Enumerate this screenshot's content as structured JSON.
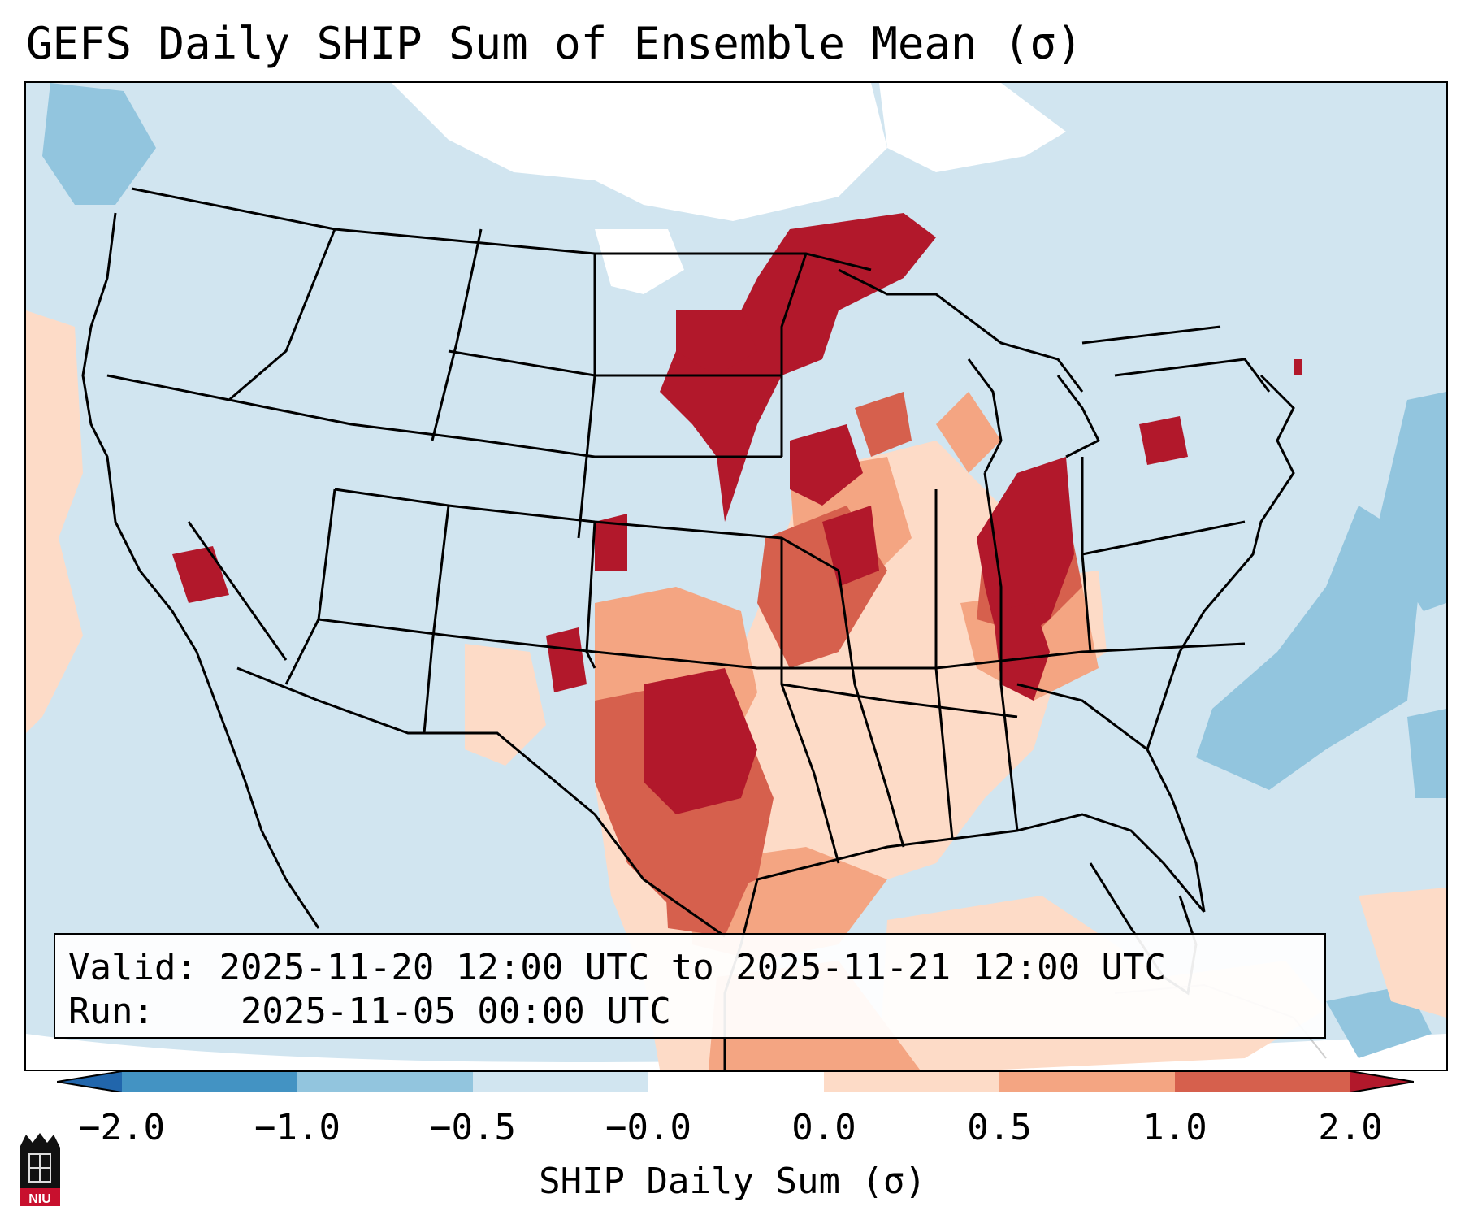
{
  "title": "GEFS Daily SHIP Sum of Ensemble Mean (σ)",
  "info": {
    "valid_label": "Valid:",
    "valid_value": "2025-11-20 12:00 UTC to 2025-11-21 12:00 UTC",
    "run_label": "Run:",
    "run_value": "2025-11-05 00:00 UTC"
  },
  "colorbar": {
    "label": "SHIP Daily Sum (σ)",
    "ticks": [
      "−2.0",
      "−1.0",
      "−0.5",
      "−0.0",
      "0.0",
      "0.5",
      "1.0",
      "2.0"
    ],
    "bins": [
      "#2166ac",
      "#4393c3",
      "#92c5de",
      "#d1e5f0",
      "#ffffff",
      "#fddbc7",
      "#f4a582",
      "#d6604d",
      "#b2182b"
    ]
  },
  "logo": {
    "text": "NIU",
    "icon": "niu-castle-logo-icon"
  },
  "map_colors": {
    "neutral_low": "#d1e5f0",
    "neutral_high": "#fddbc7",
    "moderate": "#f4a582",
    "high": "#d6604d",
    "very_high": "#b2182b",
    "low": "#92c5de",
    "white": "#ffffff"
  }
}
